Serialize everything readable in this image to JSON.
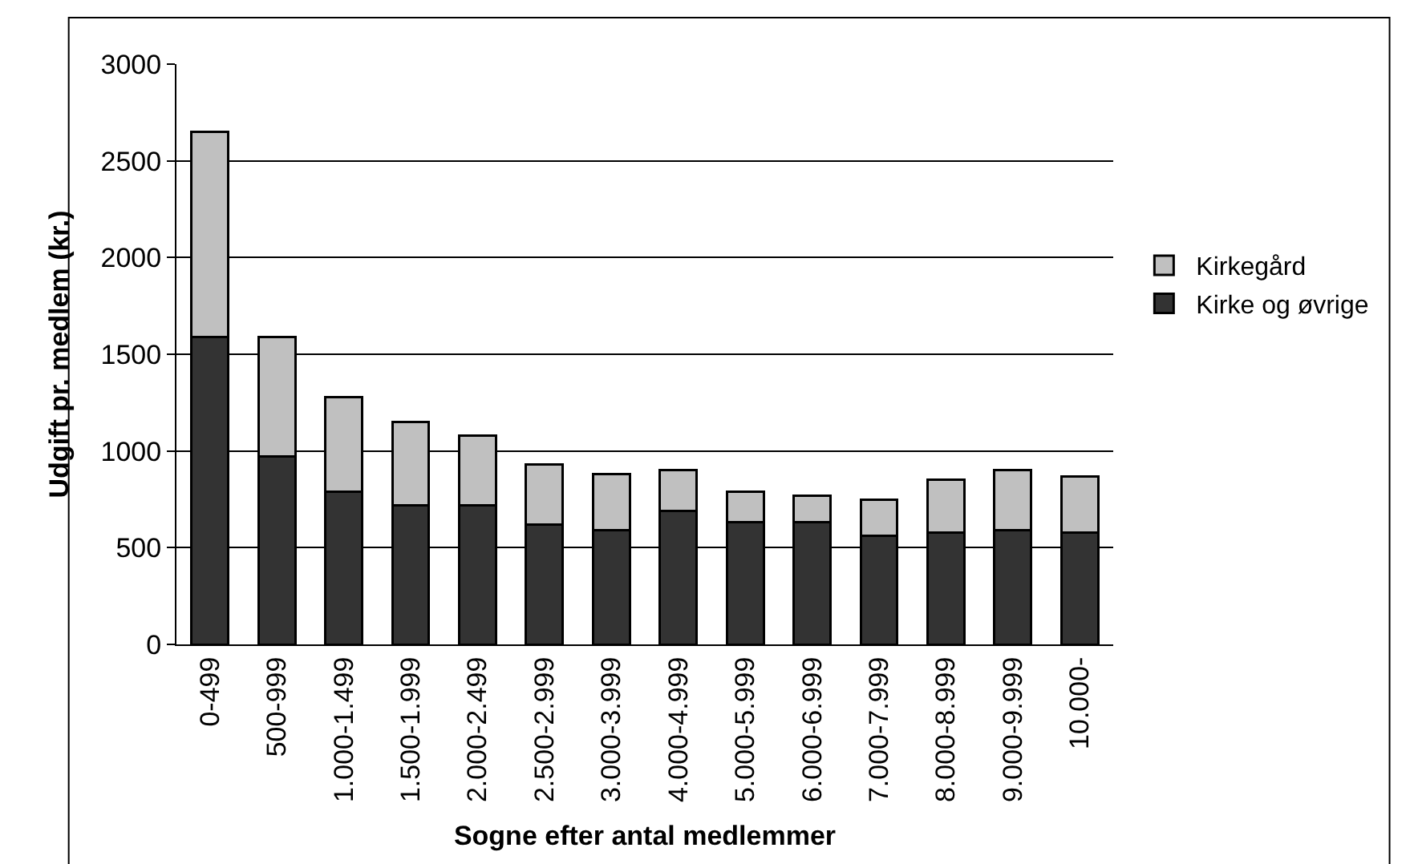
{
  "chart_data": {
    "type": "bar",
    "stacked": true,
    "xlabel": "Sogne efter antal medlemmer",
    "ylabel": "Udgift pr. medlem (kr.)",
    "categories": [
      "0-499",
      "500-999",
      "1.000-1.499",
      "1.500-1.999",
      "2.000-2.499",
      "2.500-2.999",
      "3.000-3.999",
      "4.000-4.999",
      "5.000-5.999",
      "6.000-6.999",
      "7.000-7.999",
      "8.000-8.999",
      "9.000-9.999",
      "10.000-"
    ],
    "series": [
      {
        "name": "Kirke og øvrige",
        "color": "#333333",
        "values": [
          1590,
          970,
          790,
          720,
          720,
          620,
          590,
          690,
          630,
          630,
          560,
          580,
          590,
          580
        ]
      },
      {
        "name": "Kirkegård",
        "color": "#c0c0c0",
        "values": [
          1060,
          620,
          490,
          430,
          360,
          310,
          290,
          210,
          160,
          140,
          190,
          270,
          310,
          290
        ]
      }
    ],
    "ylim": [
      0,
      3000
    ],
    "yticks": [
      0,
      500,
      1000,
      1500,
      2000,
      2500,
      3000
    ],
    "grid": "y",
    "legend": "right"
  }
}
